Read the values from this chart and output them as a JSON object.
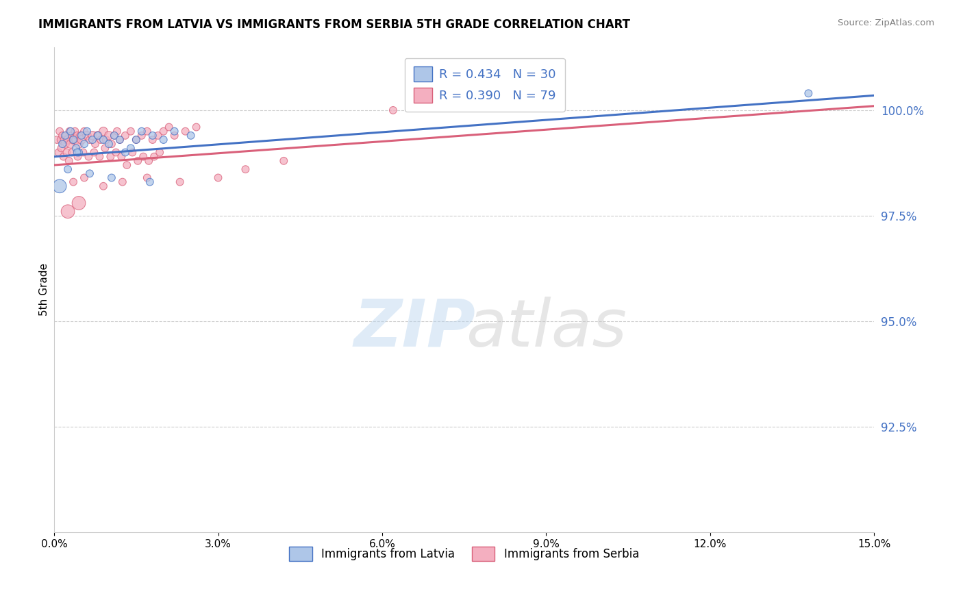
{
  "title": "IMMIGRANTS FROM LATVIA VS IMMIGRANTS FROM SERBIA 5TH GRADE CORRELATION CHART",
  "source": "Source: ZipAtlas.com",
  "ylabel": "5th Grade",
  "xlim": [
    0.0,
    15.0
  ],
  "ylim": [
    90.0,
    101.5
  ],
  "yticks": [
    92.5,
    95.0,
    97.5,
    100.0
  ],
  "ytick_labels": [
    "92.5%",
    "95.0%",
    "97.5%",
    "100.0%"
  ],
  "xticks": [
    0.0,
    3.0,
    6.0,
    9.0,
    12.0,
    15.0
  ],
  "xtick_labels": [
    "0.0%",
    "3.0%",
    "6.0%",
    "9.0%",
    "12.0%",
    "15.0%"
  ],
  "legend1_label": "R = 0.434   N = 30",
  "legend2_label": "R = 0.390   N = 79",
  "latvia_color": "#aec6e8",
  "serbia_color": "#f4afc0",
  "latvia_edge_color": "#4472C4",
  "serbia_edge_color": "#d9607a",
  "latvia_line_color": "#4472C4",
  "serbia_line_color": "#d9607a",
  "latvia_scatter_x": [
    0.15,
    0.2,
    0.3,
    0.35,
    0.4,
    0.45,
    0.5,
    0.55,
    0.6,
    0.7,
    0.8,
    0.9,
    1.0,
    1.1,
    1.2,
    1.3,
    1.4,
    1.5,
    1.6,
    1.8,
    2.0,
    2.2,
    2.5,
    0.25,
    0.65,
    1.05,
    1.75,
    0.1,
    0.42,
    13.8
  ],
  "latvia_scatter_y": [
    99.2,
    99.4,
    99.5,
    99.3,
    99.1,
    99.0,
    99.4,
    99.2,
    99.5,
    99.3,
    99.4,
    99.3,
    99.2,
    99.4,
    99.3,
    99.0,
    99.1,
    99.3,
    99.5,
    99.4,
    99.3,
    99.5,
    99.4,
    98.6,
    98.5,
    98.4,
    98.3,
    98.2,
    99.0,
    100.4
  ],
  "latvia_scatter_s": [
    60,
    60,
    60,
    60,
    60,
    60,
    60,
    60,
    60,
    60,
    60,
    60,
    60,
    60,
    60,
    60,
    60,
    60,
    60,
    60,
    60,
    60,
    60,
    60,
    60,
    60,
    60,
    200,
    60,
    60
  ],
  "serbia_scatter_x": [
    0.05,
    0.1,
    0.12,
    0.15,
    0.18,
    0.2,
    0.22,
    0.25,
    0.28,
    0.3,
    0.32,
    0.35,
    0.38,
    0.4,
    0.42,
    0.45,
    0.48,
    0.5,
    0.55,
    0.6,
    0.65,
    0.7,
    0.75,
    0.8,
    0.85,
    0.9,
    0.95,
    1.0,
    1.05,
    1.1,
    1.15,
    1.2,
    1.3,
    1.4,
    1.5,
    1.6,
    1.7,
    1.8,
    1.9,
    2.0,
    2.1,
    2.2,
    2.4,
    2.6,
    0.08,
    0.13,
    0.17,
    0.23,
    0.27,
    0.33,
    0.43,
    0.53,
    0.63,
    0.73,
    0.83,
    0.93,
    1.03,
    1.13,
    1.23,
    1.33,
    1.43,
    1.53,
    1.63,
    1.73,
    1.83,
    1.93,
    0.35,
    0.55,
    0.9,
    1.25,
    1.7,
    2.3,
    3.0,
    3.5,
    4.2,
    6.2,
    6.8,
    0.25,
    0.45
  ],
  "serbia_scatter_y": [
    99.3,
    99.5,
    99.3,
    99.4,
    99.3,
    99.2,
    99.4,
    99.3,
    99.5,
    99.2,
    99.4,
    99.3,
    99.5,
    99.3,
    99.4,
    99.2,
    99.4,
    99.3,
    99.5,
    99.4,
    99.3,
    99.4,
    99.2,
    99.4,
    99.3,
    99.5,
    99.3,
    99.4,
    99.2,
    99.4,
    99.5,
    99.3,
    99.4,
    99.5,
    99.3,
    99.4,
    99.5,
    99.3,
    99.4,
    99.5,
    99.6,
    99.4,
    99.5,
    99.6,
    99.0,
    99.1,
    98.9,
    99.0,
    98.8,
    99.0,
    98.9,
    99.0,
    98.9,
    99.0,
    98.9,
    99.1,
    98.9,
    99.0,
    98.9,
    98.7,
    99.0,
    98.8,
    98.9,
    98.8,
    98.9,
    99.0,
    98.3,
    98.4,
    98.2,
    98.3,
    98.4,
    98.3,
    98.4,
    98.6,
    98.8,
    100.0,
    100.2,
    97.6,
    97.8
  ],
  "serbia_scatter_s": [
    60,
    60,
    60,
    60,
    60,
    80,
    60,
    80,
    60,
    80,
    60,
    80,
    60,
    80,
    60,
    80,
    60,
    80,
    60,
    80,
    60,
    80,
    60,
    80,
    60,
    80,
    60,
    80,
    60,
    60,
    60,
    60,
    60,
    60,
    60,
    60,
    60,
    60,
    60,
    60,
    60,
    60,
    60,
    60,
    60,
    60,
    60,
    60,
    60,
    60,
    60,
    60,
    60,
    60,
    60,
    60,
    60,
    60,
    60,
    60,
    60,
    60,
    60,
    60,
    60,
    60,
    60,
    60,
    60,
    60,
    60,
    60,
    60,
    60,
    60,
    60,
    60,
    200,
    200
  ],
  "latvia_trend_x": [
    0.0,
    15.0
  ],
  "latvia_trend_y": [
    98.9,
    100.35
  ],
  "serbia_trend_x": [
    0.0,
    15.0
  ],
  "serbia_trend_y": [
    98.7,
    100.1
  ],
  "watermark_zip": "ZIP",
  "watermark_atlas": "atlas",
  "legend1_color": "#4472C4",
  "legend2_color": "#d9607a"
}
